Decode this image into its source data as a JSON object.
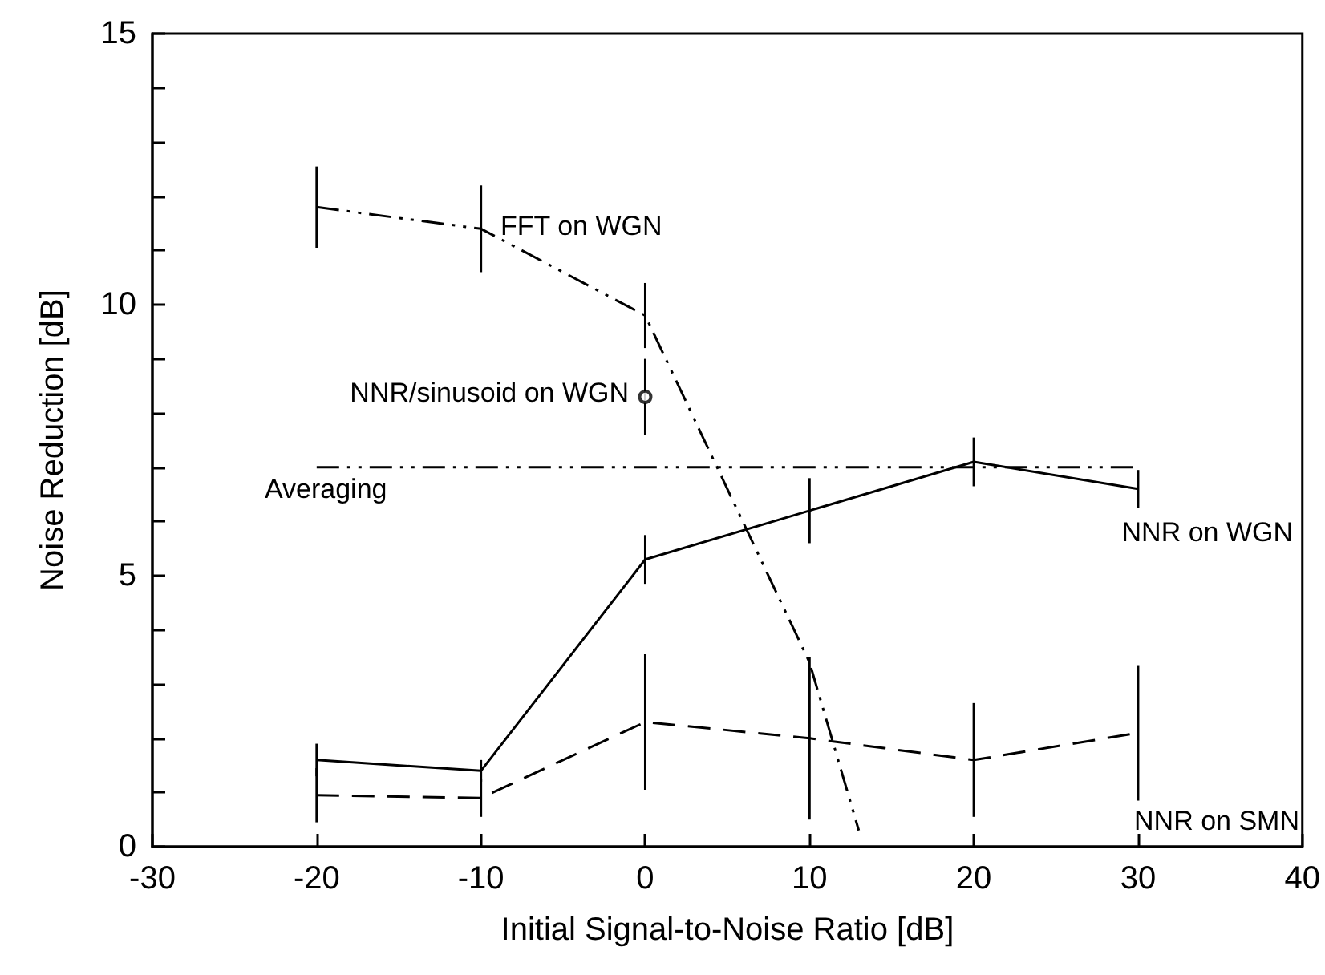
{
  "chart_data": {
    "type": "line",
    "xlabel": "Initial Signal-to-Noise Ratio [dB]",
    "ylabel": "Noise Reduction [dB]",
    "xlim": [
      -30,
      40
    ],
    "xticks": [
      -30,
      -20,
      -10,
      0,
      10,
      20,
      30,
      40
    ],
    "ylim": [
      0,
      15
    ],
    "yticks": [
      0,
      {
        "value": 1,
        "label": null
      },
      {
        "value": 2,
        "label": null
      },
      {
        "value": 3,
        "label": null
      },
      {
        "value": 4,
        "label": null
      },
      5,
      {
        "value": 6,
        "label": null
      },
      {
        "value": 7,
        "label": null
      },
      {
        "value": 8,
        "label": null
      },
      {
        "value": 9,
        "label": null
      },
      10,
      {
        "value": 11,
        "label": null
      },
      {
        "value": 12,
        "label": null
      },
      {
        "value": 13,
        "label": null
      },
      {
        "value": 14,
        "label": null
      },
      15
    ],
    "grid": false,
    "legend": false,
    "marker": "none",
    "series": [
      {
        "name": "FFT on WGN",
        "color": "#000000",
        "line_style": "dotted",
        "x": [
          -20,
          -10,
          0,
          10,
          13
        ],
        "values": [
          11.8,
          11.4,
          9.8,
          3.4,
          0.3
        ],
        "errors": [
          0.75,
          0.8,
          0.6,
          null,
          null
        ]
      },
      {
        "name": "NNR/sinusoid on WGN",
        "color": "#000000",
        "type": "scatter",
        "marker": "circle",
        "x": [
          0
        ],
        "values": [
          8.3
        ],
        "errors": [
          [
            7.6,
            9.0
          ]
        ]
      },
      {
        "name": "Averaging",
        "color": "#000000",
        "line_style": "dotted",
        "x": [
          -20,
          30
        ],
        "values": [
          7.0,
          7.0
        ]
      },
      {
        "name": "NNR on WGN",
        "color": "#000000",
        "line_style": "solid",
        "x": [
          -20,
          -10,
          0,
          10,
          20,
          30
        ],
        "values": [
          1.6,
          1.4,
          5.3,
          6.2,
          7.1,
          6.6
        ],
        "errors": [
          0.3,
          0.2,
          0.45,
          0.6,
          0.45,
          0.35
        ]
      },
      {
        "name": "NNR on SMN",
        "color": "#000000",
        "line_style": "dashed",
        "x": [
          -20,
          -10,
          0,
          10,
          20,
          30
        ],
        "values": [
          0.95,
          0.9,
          2.3,
          2.0,
          1.6,
          2.1
        ],
        "errors": [
          0.5,
          0.35,
          1.25,
          1.5,
          1.05,
          1.25
        ]
      }
    ]
  }
}
